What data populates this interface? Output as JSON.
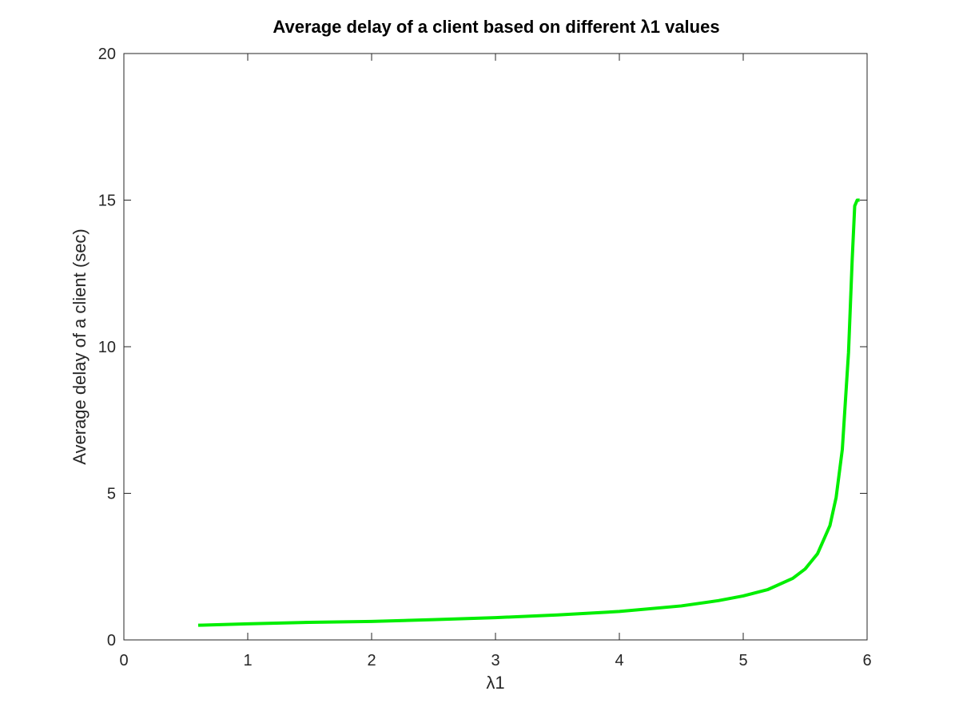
{
  "chart_data": {
    "type": "line",
    "title": "Average delay of a client based on different λ1 values",
    "xlabel": "λ1",
    "ylabel": "Average delay of a client (sec)",
    "xlim": [
      0,
      6
    ],
    "ylim": [
      0,
      20
    ],
    "x_ticks": [
      "0",
      "1",
      "2",
      "3",
      "4",
      "5",
      "6"
    ],
    "y_ticks": [
      "0",
      "5",
      "10",
      "15",
      "20"
    ],
    "grid": false,
    "legend": "none",
    "colors": {
      "line": "#00ee00",
      "axes": "#262626"
    },
    "series": [
      {
        "x": [
          0.6,
          1.0,
          1.5,
          2.0,
          2.5,
          3.0,
          3.5,
          4.0,
          4.5,
          4.8,
          5.0,
          5.2,
          5.4,
          5.5,
          5.6,
          5.7,
          5.75,
          5.8,
          5.85,
          5.88,
          5.9,
          5.92,
          5.94
        ],
        "y": [
          0.5,
          0.55,
          0.6,
          0.63,
          0.69,
          0.76,
          0.85,
          0.97,
          1.16,
          1.34,
          1.5,
          1.72,
          2.1,
          2.42,
          2.94,
          3.9,
          4.86,
          6.5,
          9.8,
          13.0,
          14.8,
          15.0,
          15.0
        ]
      }
    ]
  }
}
